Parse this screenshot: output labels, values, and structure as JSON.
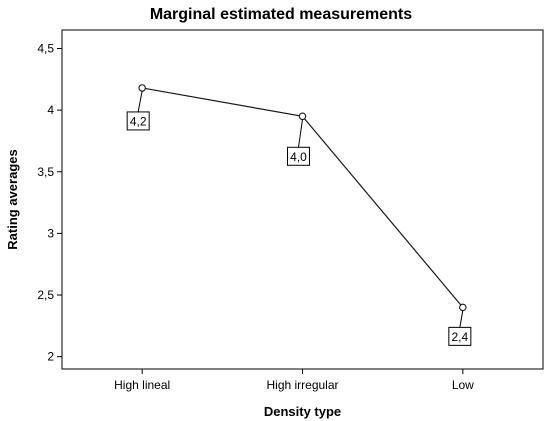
{
  "chart_data": {
    "type": "line",
    "title": "Marginal estimated measurements",
    "xlabel": "Density type",
    "ylabel": "Rating averages",
    "categories": [
      "High lineal",
      "High irregular",
      "Low"
    ],
    "values": [
      4.18,
      3.95,
      2.4
    ],
    "value_labels": [
      "4,2",
      "4,0",
      "2,4"
    ],
    "ylim": [
      1.9,
      4.65
    ],
    "yticks": [
      2,
      2.5,
      3,
      3.5,
      4,
      4.5
    ],
    "ytick_labels": [
      "2",
      "2,5",
      "3",
      "3,5",
      "4",
      "4,5"
    ],
    "grid": false,
    "line_color": "#1a1a1a",
    "marker": "open-circle"
  }
}
